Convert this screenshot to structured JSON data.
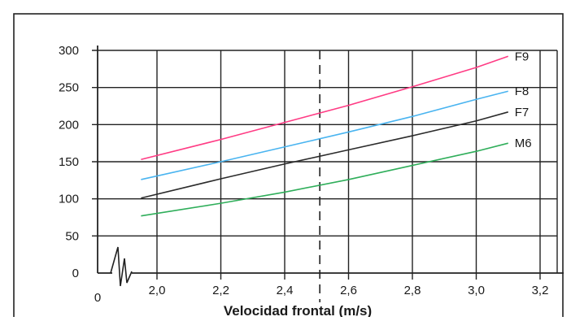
{
  "chart_data": {
    "type": "line",
    "xlabel": "Velocidad frontal (m/s)",
    "ylabel": "",
    "xlim": [
      1.85,
      3.2
    ],
    "ylim": [
      0,
      300
    ],
    "x_ticks": [
      "2,0",
      "2,2",
      "2,4",
      "2,6",
      "2,8",
      "3,0",
      "3,2"
    ],
    "x_tick_values": [
      2.0,
      2.2,
      2.4,
      2.6,
      2.8,
      3.0,
      3.2
    ],
    "y_ticks": [
      "0",
      "50",
      "100",
      "150",
      "200",
      "250",
      "300"
    ],
    "y_tick_values": [
      0,
      50,
      100,
      150,
      200,
      250,
      300
    ],
    "origin_label": "0",
    "x_axis_break": true,
    "grid": true,
    "reference_line": {
      "x": 2.51,
      "style": "dashed"
    },
    "series": [
      {
        "name": "F9",
        "color": "#ff3b84",
        "x": [
          1.95,
          2.2,
          2.4,
          2.6,
          2.8,
          3.0,
          3.1
        ],
        "y": [
          153,
          180,
          203,
          226,
          251,
          277,
          292
        ]
      },
      {
        "name": "F8",
        "color": "#49b4f0",
        "x": [
          1.95,
          2.2,
          2.4,
          2.6,
          2.8,
          3.0,
          3.1
        ],
        "y": [
          126,
          150,
          170,
          190,
          211,
          234,
          245
        ]
      },
      {
        "name": "F7",
        "color": "#2b2b2b",
        "x": [
          1.95,
          2.2,
          2.4,
          2.6,
          2.8,
          3.0,
          3.1
        ],
        "y": [
          101,
          127,
          147,
          166,
          185,
          205,
          217
        ]
      },
      {
        "name": "M6",
        "color": "#2fae5a",
        "x": [
          1.95,
          2.2,
          2.4,
          2.6,
          2.8,
          3.0,
          3.1
        ],
        "y": [
          77,
          94,
          109,
          126,
          145,
          164,
          175
        ]
      }
    ]
  }
}
